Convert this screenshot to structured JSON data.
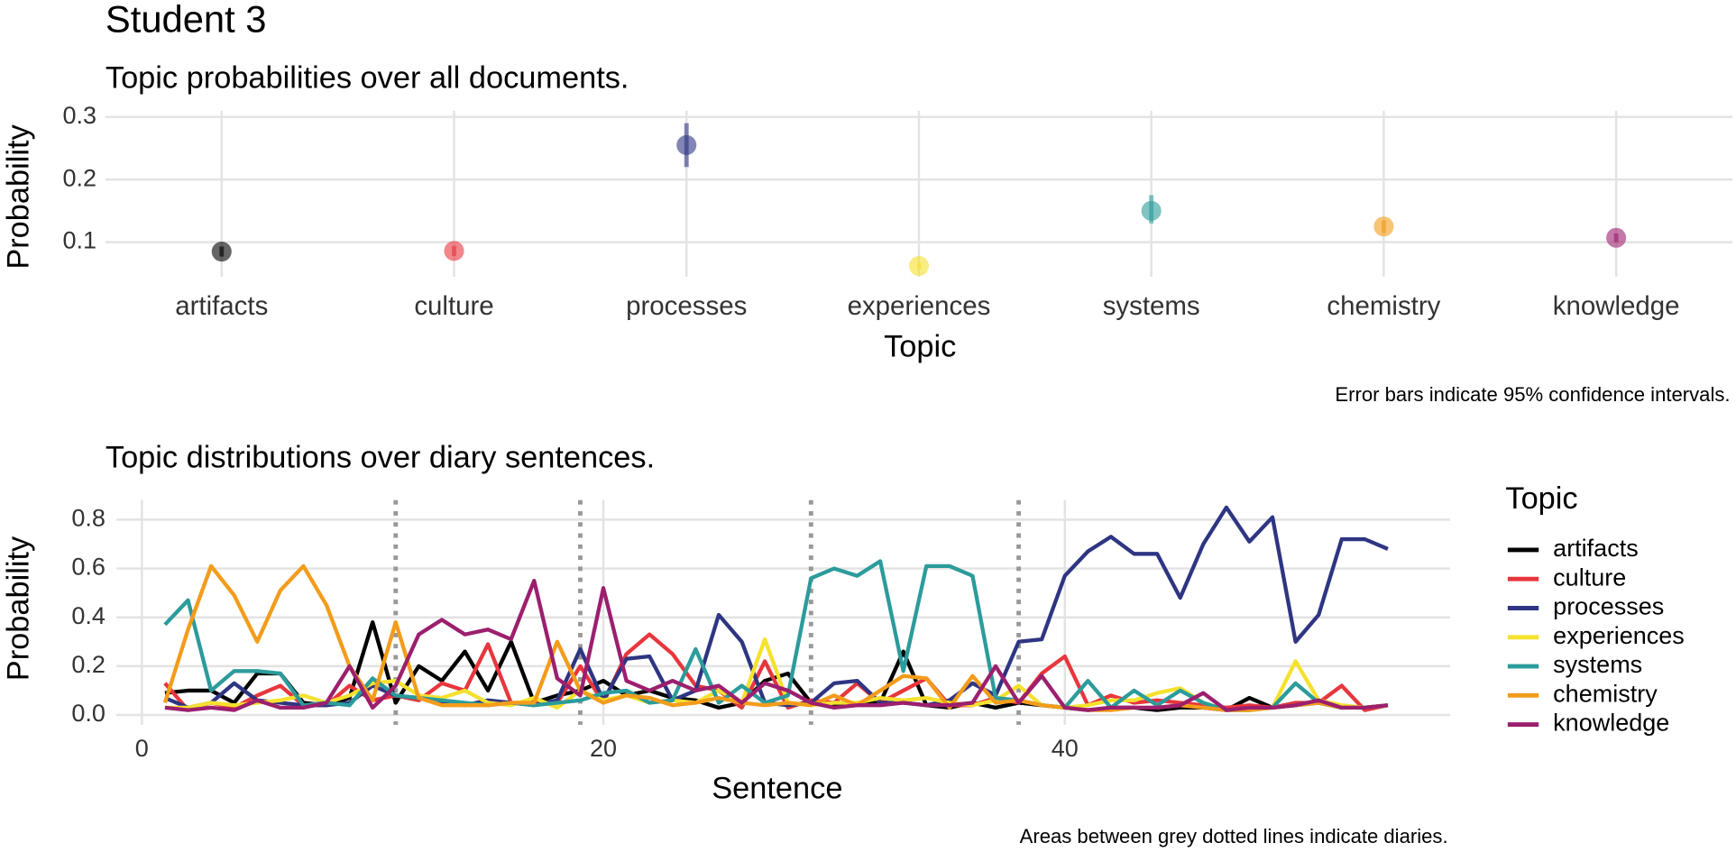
{
  "chart_data": [
    {
      "type": "pointrange",
      "title": "Student 3",
      "subtitle": "Topic probabilities over all documents.",
      "x_label": "Topic",
      "y_label": "Probability",
      "caption": "Error bars indicate 95% confidence intervals.",
      "categories": [
        "artifacts",
        "culture",
        "processes",
        "experiences",
        "systems",
        "chemistry",
        "knowledge"
      ],
      "values": [
        0.085,
        0.086,
        0.255,
        0.062,
        0.15,
        0.125,
        0.107
      ],
      "lower": [
        0.077,
        0.078,
        0.22,
        0.057,
        0.13,
        0.115,
        0.1
      ],
      "upper": [
        0.093,
        0.094,
        0.29,
        0.067,
        0.175,
        0.135,
        0.114
      ],
      "colors": [
        "#000000",
        "#e8363d",
        "#2e3582",
        "#f5e12e",
        "#2c9b9b",
        "#f39c1b",
        "#9c1f6e"
      ],
      "ylim": [
        0.045,
        0.31
      ],
      "yticks": [
        0.1,
        0.2,
        0.3
      ],
      "grid": true
    },
    {
      "type": "line",
      "title": "Topic distributions over diary sentences.",
      "x_label": "Sentence",
      "y_label": "Probability",
      "legend_title": "Topic",
      "legend_position": "right",
      "caption": "Areas between grey dotted lines indicate diaries.",
      "x": [
        1,
        2,
        3,
        4,
        5,
        6,
        7,
        8,
        9,
        10,
        11,
        12,
        13,
        14,
        15,
        16,
        17,
        18,
        19,
        20,
        21,
        22,
        23,
        24,
        25,
        26,
        27,
        28,
        29,
        30,
        31,
        32,
        33,
        34,
        35,
        36,
        37,
        38,
        39,
        40,
        41,
        42,
        43,
        44,
        45,
        46,
        47,
        48,
        49,
        50,
        51,
        52,
        53,
        54
      ],
      "dividers": [
        11,
        19,
        29,
        38
      ],
      "xlim": [
        -1.1,
        56.7
      ],
      "xticks": [
        0,
        20,
        40
      ],
      "ylim": [
        -0.04,
        0.88
      ],
      "yticks": [
        {
          "value": 0,
          "label": "0.0"
        },
        0.2,
        0.4,
        0.6,
        0.8
      ],
      "grid": true,
      "series": [
        {
          "name": "artifacts",
          "color": "#000000",
          "values": [
            0.09,
            0.1,
            0.1,
            0.05,
            0.17,
            0.17,
            0.05,
            0.04,
            0.07,
            0.38,
            0.05,
            0.2,
            0.14,
            0.26,
            0.1,
            0.3,
            0.05,
            0.08,
            0.1,
            0.14,
            0.08,
            0.1,
            0.07,
            0.06,
            0.03,
            0.05,
            0.14,
            0.17,
            0.05,
            0.04,
            0.05,
            0.05,
            0.26,
            0.04,
            0.03,
            0.05,
            0.03,
            0.05,
            0.04,
            0.03,
            0.02,
            0.03,
            0.03,
            0.02,
            0.03,
            0.03,
            0.02,
            0.07,
            0.03,
            0.04,
            0.05,
            0.03,
            0.03,
            0.04
          ]
        },
        {
          "name": "culture",
          "color": "#e8363d",
          "values": [
            0.13,
            0.02,
            0.05,
            0.03,
            0.08,
            0.12,
            0.04,
            0.04,
            0.12,
            0.06,
            0.08,
            0.06,
            0.13,
            0.1,
            0.29,
            0.05,
            0.05,
            0.05,
            0.2,
            0.05,
            0.25,
            0.33,
            0.25,
            0.12,
            0.1,
            0.03,
            0.22,
            0.03,
            0.06,
            0.05,
            0.13,
            0.05,
            0.1,
            0.15,
            0.04,
            0.04,
            0.07,
            0.05,
            0.17,
            0.24,
            0.04,
            0.08,
            0.05,
            0.06,
            0.05,
            0.04,
            0.03,
            0.04,
            0.03,
            0.05,
            0.05,
            0.12,
            0.02,
            0.04
          ]
        },
        {
          "name": "processes",
          "color": "#2e3582",
          "values": [
            0.07,
            0.03,
            0.05,
            0.13,
            0.06,
            0.05,
            0.04,
            0.04,
            0.05,
            0.12,
            0.08,
            0.07,
            0.05,
            0.04,
            0.06,
            0.05,
            0.04,
            0.06,
            0.27,
            0.06,
            0.23,
            0.24,
            0.06,
            0.1,
            0.41,
            0.3,
            0.05,
            0.04,
            0.05,
            0.13,
            0.14,
            0.05,
            0.05,
            0.04,
            0.06,
            0.13,
            0.08,
            0.3,
            0.31,
            0.57,
            0.67,
            0.73,
            0.66,
            0.66,
            0.48,
            0.7,
            0.85,
            0.71,
            0.81,
            0.3,
            0.41,
            0.72,
            0.72,
            0.68
          ]
        },
        {
          "name": "experiences",
          "color": "#f5e12e",
          "values": [
            0.03,
            0.03,
            0.05,
            0.04,
            0.05,
            0.06,
            0.08,
            0.05,
            0.08,
            0.13,
            0.14,
            0.08,
            0.07,
            0.1,
            0.05,
            0.04,
            0.07,
            0.03,
            0.1,
            0.06,
            0.08,
            0.05,
            0.06,
            0.05,
            0.1,
            0.05,
            0.31,
            0.05,
            0.04,
            0.05,
            0.05,
            0.07,
            0.06,
            0.07,
            0.05,
            0.04,
            0.06,
            0.12,
            0.04,
            0.03,
            0.04,
            0.06,
            0.06,
            0.09,
            0.11,
            0.05,
            0.02,
            0.02,
            0.03,
            0.22,
            0.06,
            0.04,
            0.03,
            0.04
          ]
        },
        {
          "name": "systems",
          "color": "#2c9b9b",
          "values": [
            0.37,
            0.47,
            0.1,
            0.18,
            0.18,
            0.17,
            0.04,
            0.05,
            0.04,
            0.15,
            0.08,
            0.07,
            0.06,
            0.05,
            0.04,
            0.05,
            0.04,
            0.05,
            0.06,
            0.09,
            0.1,
            0.05,
            0.06,
            0.27,
            0.05,
            0.12,
            0.05,
            0.08,
            0.56,
            0.6,
            0.57,
            0.63,
            0.18,
            0.61,
            0.61,
            0.57,
            0.07,
            0.06,
            0.04,
            0.03,
            0.14,
            0.03,
            0.1,
            0.04,
            0.1,
            0.05,
            0.02,
            0.02,
            0.03,
            0.13,
            0.05,
            0.03,
            0.03,
            0.04
          ]
        },
        {
          "name": "chemistry",
          "color": "#f39c1b",
          "values": [
            0.05,
            0.35,
            0.61,
            0.49,
            0.3,
            0.51,
            0.61,
            0.45,
            0.2,
            0.06,
            0.38,
            0.07,
            0.04,
            0.04,
            0.04,
            0.05,
            0.05,
            0.3,
            0.1,
            0.05,
            0.08,
            0.07,
            0.04,
            0.05,
            0.07,
            0.05,
            0.04,
            0.05,
            0.04,
            0.08,
            0.04,
            0.1,
            0.16,
            0.15,
            0.03,
            0.16,
            0.05,
            0.06,
            0.04,
            0.03,
            0.02,
            0.02,
            0.03,
            0.03,
            0.04,
            0.03,
            0.02,
            0.02,
            0.03,
            0.04,
            0.05,
            0.03,
            0.03,
            0.04
          ]
        },
        {
          "name": "knowledge",
          "color": "#9c1f6e",
          "values": [
            0.03,
            0.02,
            0.03,
            0.02,
            0.06,
            0.03,
            0.03,
            0.05,
            0.2,
            0.03,
            0.12,
            0.33,
            0.39,
            0.33,
            0.35,
            0.31,
            0.55,
            0.15,
            0.08,
            0.52,
            0.14,
            0.1,
            0.14,
            0.1,
            0.12,
            0.05,
            0.13,
            0.1,
            0.05,
            0.03,
            0.04,
            0.04,
            0.05,
            0.04,
            0.04,
            0.05,
            0.2,
            0.05,
            0.16,
            0.03,
            0.02,
            0.03,
            0.03,
            0.03,
            0.04,
            0.09,
            0.02,
            0.03,
            0.03,
            0.04,
            0.06,
            0.03,
            0.03,
            0.04
          ]
        }
      ]
    }
  ]
}
